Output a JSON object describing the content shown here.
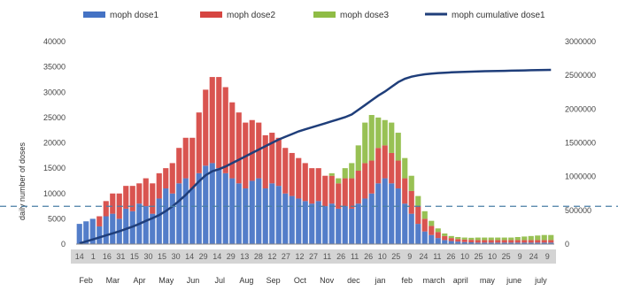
{
  "chart_data": {
    "type": "bar",
    "legend": {
      "placement": "top",
      "items": [
        {
          "name": "moph dose1",
          "color": "#4472c4",
          "kind": "bar"
        },
        {
          "name": "moph dose2",
          "color": "#d64541",
          "kind": "bar"
        },
        {
          "name": "moph dose3",
          "color": "#8fbc45",
          "kind": "bar"
        },
        {
          "name": "moph cumulative dose1",
          "color": "#1f3e7a",
          "kind": "line"
        }
      ]
    },
    "ylabel": "daily number of doses",
    "y2label": "",
    "ylim": [
      0,
      40000
    ],
    "y2lim": [
      0,
      3000000
    ],
    "yticks": [
      "0",
      "5000",
      "10000",
      "15000",
      "20000",
      "25000",
      "30000",
      "35000",
      "40000"
    ],
    "y2ticks": [
      "0",
      "500000",
      "1000000",
      "1500000",
      "2000000",
      "2500000",
      "3000000"
    ],
    "grid": false,
    "reference_line": {
      "style": "dashed",
      "color": "#4a7fa6",
      "y2_value": 560000
    },
    "x_day_labels": [
      "14",
      "1",
      "16",
      "31",
      "15",
      "30",
      "15",
      "30",
      "14",
      "29",
      "14",
      "29",
      "13",
      "28",
      "12",
      "27",
      "12",
      "27",
      "11",
      "26",
      "11",
      "26",
      "10",
      "25",
      "9",
      "24",
      "11",
      "26",
      "10",
      "25",
      "10",
      "25",
      "9",
      "24",
      "9"
    ],
    "months": [
      "Feb",
      "Mar",
      "Apr",
      "May",
      "Jun",
      "Jul",
      "Aug",
      "Sep",
      "Oct",
      "Nov",
      "dec",
      "jan",
      "feb",
      "march",
      "april",
      "may",
      "june",
      "july"
    ],
    "x": [
      0,
      1,
      2,
      3,
      4,
      5,
      6,
      7,
      8,
      9,
      10,
      11,
      12,
      13,
      14,
      15,
      16,
      17,
      18,
      19,
      20,
      21,
      22,
      23,
      24,
      25,
      26,
      27,
      28,
      29,
      30,
      31,
      32,
      33,
      34,
      35,
      36,
      37,
      38,
      39,
      40,
      41,
      42,
      43,
      44,
      45,
      46,
      47,
      48,
      49,
      50,
      51,
      52,
      53,
      54,
      55,
      56,
      57,
      58,
      59,
      60,
      61,
      62,
      63,
      64,
      65,
      66,
      67,
      68,
      69,
      70,
      71
    ],
    "series": [
      {
        "name": "moph dose1",
        "stack": true,
        "values": [
          4000,
          4500,
          5000,
          3500,
          5500,
          6000,
          5000,
          7000,
          6500,
          8000,
          7500,
          6000,
          9000,
          11000,
          10000,
          12000,
          13000,
          11000,
          14000,
          15500,
          16000,
          15000,
          14000,
          13000,
          12000,
          11000,
          12500,
          13000,
          11000,
          12000,
          11500,
          10000,
          9500,
          9000,
          8500,
          8000,
          8500,
          7500,
          8000,
          7000,
          7500,
          7000,
          8000,
          9000,
          10000,
          12000,
          13000,
          12000,
          11000,
          8000,
          6000,
          4000,
          2500,
          1800,
          1200,
          800,
          600,
          500,
          400,
          350,
          300,
          300,
          300,
          300,
          300,
          300,
          300,
          300,
          300,
          300,
          300,
          300
        ]
      },
      {
        "name": "moph dose2",
        "stack": true,
        "values": [
          0,
          0,
          0,
          2000,
          3000,
          4000,
          5000,
          4500,
          5000,
          4000,
          5500,
          6000,
          5000,
          4000,
          6000,
          7000,
          8000,
          10000,
          12000,
          15000,
          17000,
          18000,
          17000,
          15000,
          14000,
          13000,
          12000,
          11000,
          10500,
          10000,
          9500,
          9000,
          8500,
          8000,
          7500,
          7000,
          6500,
          6000,
          5500,
          5000,
          5500,
          6000,
          6500,
          7000,
          6500,
          7000,
          6500,
          6000,
          5500,
          5000,
          4500,
          3500,
          2500,
          1800,
          1200,
          800,
          600,
          500,
          500,
          500,
          500,
          500,
          500,
          500,
          500,
          500,
          500,
          500,
          500,
          500,
          500,
          500
        ]
      },
      {
        "name": "moph dose3",
        "stack": true,
        "values": [
          0,
          0,
          0,
          0,
          0,
          0,
          0,
          0,
          0,
          0,
          0,
          0,
          0,
          0,
          0,
          0,
          0,
          0,
          0,
          0,
          0,
          0,
          0,
          0,
          0,
          0,
          0,
          0,
          0,
          0,
          0,
          0,
          0,
          0,
          0,
          0,
          0,
          0,
          500,
          1000,
          2000,
          3000,
          5000,
          8000,
          9000,
          6000,
          5000,
          6000,
          5500,
          4000,
          3000,
          2000,
          1500,
          1000,
          700,
          500,
          400,
          400,
          400,
          400,
          500,
          500,
          500,
          500,
          500,
          500,
          600,
          700,
          800,
          900,
          1000,
          1000
        ]
      },
      {
        "name": "moph cumulative dose1",
        "axis": "y2",
        "type": "line",
        "values": [
          10000,
          40000,
          70000,
          100000,
          130000,
          160000,
          190000,
          225000,
          260000,
          300000,
          345000,
          385000,
          430000,
          490000,
          560000,
          640000,
          730000,
          830000,
          930000,
          1020000,
          1080000,
          1110000,
          1150000,
          1200000,
          1250000,
          1300000,
          1350000,
          1400000,
          1450000,
          1500000,
          1550000,
          1590000,
          1630000,
          1670000,
          1700000,
          1730000,
          1760000,
          1790000,
          1820000,
          1850000,
          1880000,
          1920000,
          1990000,
          2060000,
          2130000,
          2200000,
          2260000,
          2330000,
          2400000,
          2450000,
          2480000,
          2500000,
          2515000,
          2525000,
          2533000,
          2539000,
          2544000,
          2548000,
          2552000,
          2555000,
          2558000,
          2561000,
          2563000,
          2565000,
          2567000,
          2569000,
          2571000,
          2573000,
          2575000,
          2577000,
          2579000,
          2581000
        ]
      }
    ]
  }
}
